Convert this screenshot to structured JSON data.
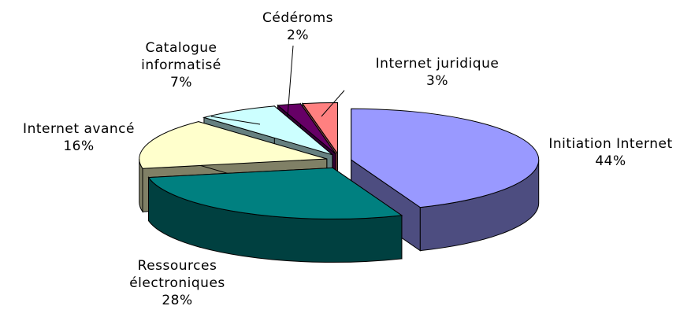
{
  "chart_data": {
    "type": "pie",
    "categories": [
      "Initiation Internet",
      "Ressources électroniques",
      "Internet avancé",
      "Catalogue informatisé",
      "Cédéroms",
      "Internet juridique"
    ],
    "values": [
      44,
      28,
      16,
      7,
      2,
      3
    ],
    "value_labels": [
      "44%",
      "28%",
      "16%",
      "7%",
      "2%",
      "3%"
    ],
    "colors": [
      "#9999ff",
      "#008080",
      "#ffffcc",
      "#ccffff",
      "#660066",
      "#ff8080"
    ]
  }
}
